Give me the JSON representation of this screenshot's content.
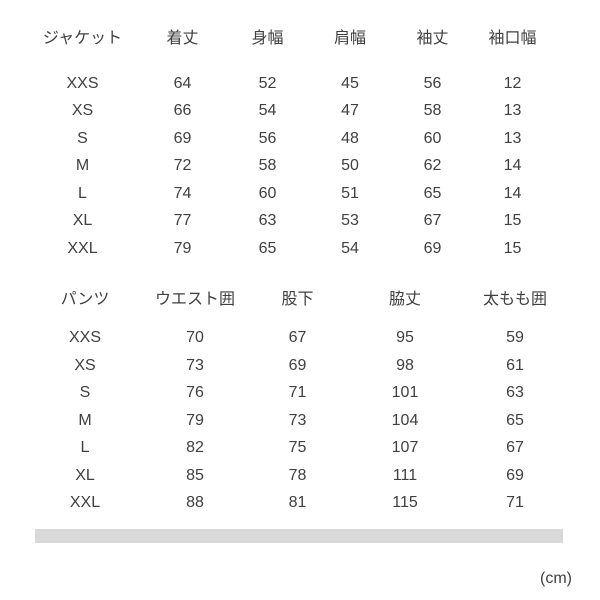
{
  "unit_label": "(cm)",
  "colors": {
    "background": "#ffffff",
    "text": "#404040",
    "scrollbar_track": "#d9d9d9"
  },
  "chart_data": [
    {
      "type": "table",
      "title": "ジャケット",
      "columns": [
        "ジャケット",
        "着丈",
        "身幅",
        "肩幅",
        "袖丈",
        "袖口幅"
      ],
      "rows": [
        [
          "XXS",
          64,
          52,
          45,
          56,
          12
        ],
        [
          "XS",
          66,
          54,
          47,
          58,
          13
        ],
        [
          "S",
          69,
          56,
          48,
          60,
          13
        ],
        [
          "M",
          72,
          58,
          50,
          62,
          14
        ],
        [
          "L",
          74,
          60,
          51,
          65,
          14
        ],
        [
          "XL",
          77,
          63,
          53,
          67,
          15
        ],
        [
          "XXL",
          79,
          65,
          54,
          69,
          15
        ]
      ]
    },
    {
      "type": "table",
      "title": "パンツ",
      "columns": [
        "パンツ",
        "ウエスト囲",
        "股下",
        "脇丈",
        "太もも囲"
      ],
      "rows": [
        [
          "XXS",
          70,
          67,
          95,
          59
        ],
        [
          "XS",
          73,
          69,
          98,
          61
        ],
        [
          "S",
          76,
          71,
          101,
          63
        ],
        [
          "M",
          79,
          73,
          104,
          65
        ],
        [
          "L",
          82,
          75,
          107,
          67
        ],
        [
          "XL",
          85,
          78,
          111,
          69
        ],
        [
          "XXL",
          88,
          81,
          115,
          71
        ]
      ]
    }
  ]
}
